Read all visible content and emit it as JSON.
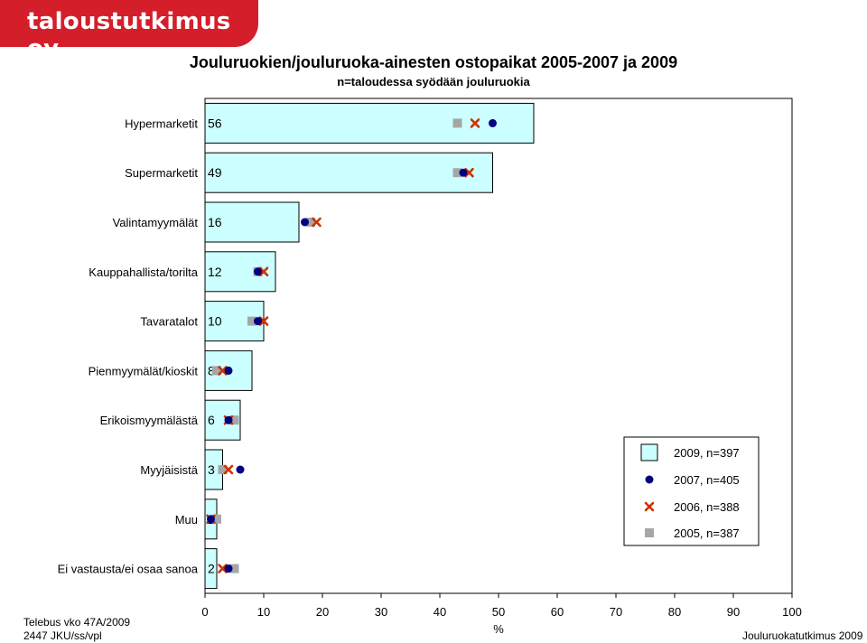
{
  "logo_text": "taloustutkimus oy",
  "chart_data": {
    "type": "bar",
    "orientation": "horizontal",
    "title": "Jouluruokien/jouluruoka-ainesten ostopaikat 2005-2007 ja 2009",
    "subtitle": "n=taloudessa syödään jouluruokia",
    "xlabel": "%",
    "xlim": [
      0,
      100
    ],
    "xticks": [
      0,
      10,
      20,
      30,
      40,
      50,
      60,
      70,
      80,
      90,
      100
    ],
    "categories": [
      "Hypermarketit",
      "Supermarketit",
      "Valintamyymälät",
      "Kauppahallista/torilta",
      "Tavaratalot",
      "Pienmyymälät/kioskit",
      "Erikoismyymälästä",
      "Myyjäisistä",
      "Muu",
      "Ei vastausta/ei osaa sanoa"
    ],
    "series": [
      {
        "name": "2009, n=397",
        "marker": "bar",
        "color": "#ccffff",
        "values": [
          56,
          49,
          16,
          12,
          10,
          8,
          6,
          3,
          2,
          2
        ]
      },
      {
        "name": "2007, n=405",
        "marker": "circle",
        "color": "#000080",
        "values": [
          49,
          44,
          17,
          9,
          9,
          4,
          4,
          6,
          1,
          4
        ]
      },
      {
        "name": "2006, n=388",
        "marker": "x",
        "color": "#cc3300",
        "values": [
          46,
          45,
          19,
          10,
          10,
          3,
          4,
          4,
          1,
          3
        ]
      },
      {
        "name": "2005, n=387",
        "marker": "square",
        "color": "#a6a6a6",
        "values": [
          43,
          43,
          18,
          9,
          8,
          2,
          5,
          3,
          2,
          5
        ]
      }
    ],
    "data_labels": [
      "56",
      "49",
      "16",
      "12",
      "10",
      "8",
      "6",
      "3",
      "2",
      "2"
    ],
    "legend_position": "bottom-right",
    "grid": false
  },
  "footer": {
    "left_line1": "Telebus vko 47A/2009",
    "left_line2": "2447 JKU/ss/vpl",
    "right": "Jouluruokatutkimus 2009"
  }
}
